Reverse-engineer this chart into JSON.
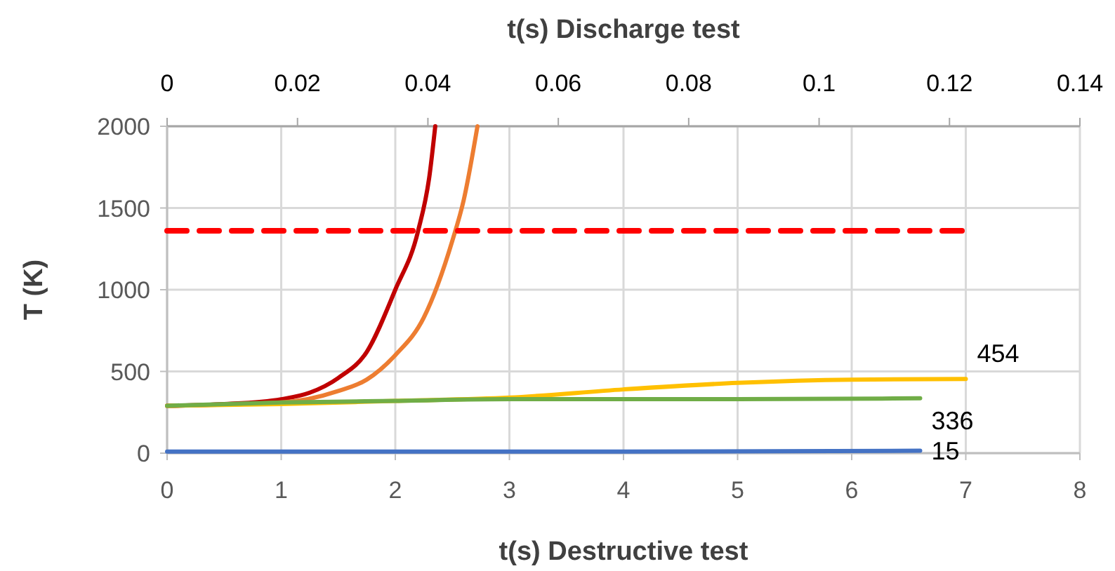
{
  "chart_data": {
    "type": "line",
    "xlabel": "t(s) Destructive test",
    "x2label": "t(s) Discharge test",
    "ylabel": "T (K)",
    "xlim": [
      0,
      8
    ],
    "xticks": [
      0,
      1,
      2,
      3,
      4,
      5,
      6,
      7,
      8
    ],
    "x2lim": [
      0,
      0.14
    ],
    "x2ticks": [
      0,
      0.02,
      0.04,
      0.06,
      0.08,
      0.1,
      0.12,
      0.14
    ],
    "ylim": [
      0,
      2000
    ],
    "yticks": [
      0,
      500,
      1000,
      1500,
      2000
    ],
    "grid": true,
    "marker": "none",
    "series": [
      {
        "color": "#c00000",
        "x": [
          0,
          0.5,
          1,
          1.25,
          1.5,
          1.75,
          2,
          2.2,
          2.3,
          2.35
        ],
        "values": [
          290,
          300,
          330,
          370,
          460,
          620,
          1000,
          1360,
          1700,
          2000
        ]
      },
      {
        "color": "#ed7d31",
        "x": [
          0,
          1,
          1.5,
          1.75,
          2,
          2.25,
          2.5,
          2.6,
          2.72
        ],
        "values": [
          290,
          310,
          380,
          450,
          600,
          830,
          1300,
          1550,
          2000
        ]
      },
      {
        "color": "#ffc000",
        "x": [
          0,
          1,
          2,
          3,
          4,
          5,
          6,
          7
        ],
        "values": [
          290,
          300,
          320,
          340,
          390,
          430,
          450,
          454
        ],
        "value_labels": [
          null,
          null,
          null,
          null,
          null,
          null,
          null,
          "454"
        ]
      },
      {
        "color": "#70ad47",
        "x": [
          0,
          1,
          2,
          3,
          4,
          5,
          6.6
        ],
        "values": [
          290,
          310,
          320,
          330,
          330,
          330,
          336
        ],
        "value_labels": [
          null,
          null,
          null,
          null,
          null,
          null,
          "336"
        ]
      },
      {
        "color": "#4472c4",
        "x": [
          0,
          2,
          4,
          6.6
        ],
        "values": [
          10,
          10,
          10,
          15
        ],
        "value_labels": [
          null,
          null,
          null,
          "15"
        ]
      },
      {
        "color": "#ff0000",
        "line_style": "dashed",
        "x": [
          0,
          7
        ],
        "values": [
          1360,
          1360
        ]
      }
    ]
  }
}
